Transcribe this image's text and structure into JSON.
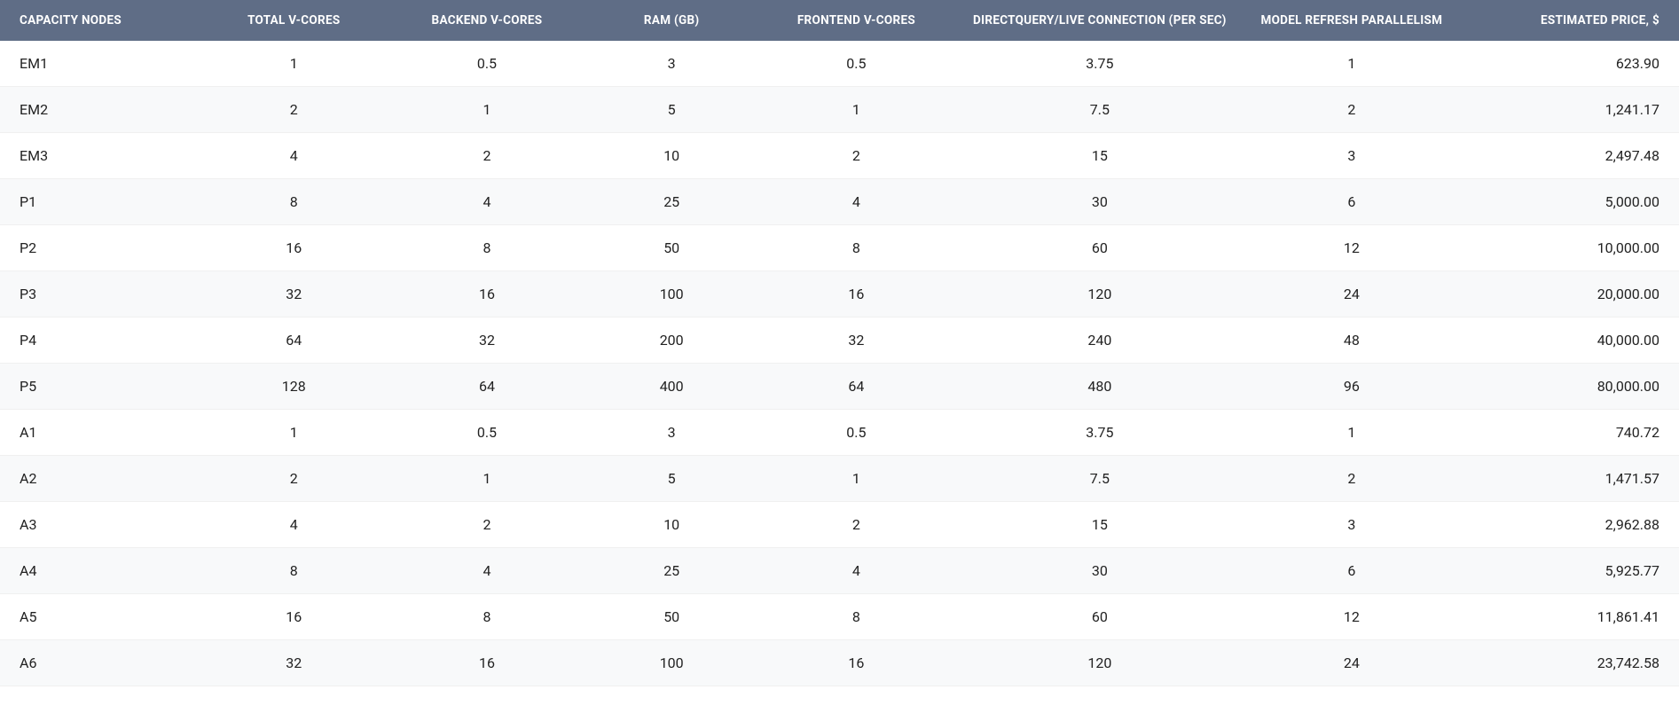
{
  "table": {
    "type": "table",
    "header_background_color": "#5f6d86",
    "header_text_color": "#ffffff",
    "row_even_background": "#f8f9fa",
    "row_odd_background": "#ffffff",
    "body_text_color": "#222222",
    "header_font_size": 13.5,
    "body_font_size": 16,
    "columns": [
      {
        "label": "CAPACITY NODES",
        "align": "left"
      },
      {
        "label": "TOTAL V-CORES",
        "align": "center"
      },
      {
        "label": "BACKEND V-CORES",
        "align": "center"
      },
      {
        "label": "RAM (GB)",
        "align": "center"
      },
      {
        "label": "FRONTEND V-CORES",
        "align": "center"
      },
      {
        "label": "DIRECTQUERY/LIVE CONNECTION (PER SEC)",
        "align": "center"
      },
      {
        "label": "MODEL REFRESH PARALLELISM",
        "align": "center"
      },
      {
        "label": "ESTIMATED PRICE, $",
        "align": "right"
      }
    ],
    "column_widths_pct": [
      12,
      11,
      12,
      10,
      12,
      17,
      13,
      13
    ],
    "rows": [
      [
        "EM1",
        "1",
        "0.5",
        "3",
        "0.5",
        "3.75",
        "1",
        "623.90"
      ],
      [
        "EM2",
        "2",
        "1",
        "5",
        "1",
        "7.5",
        "2",
        "1,241.17"
      ],
      [
        "EM3",
        "4",
        "2",
        "10",
        "2",
        "15",
        "3",
        "2,497.48"
      ],
      [
        "P1",
        "8",
        "4",
        "25",
        "4",
        "30",
        "6",
        "5,000.00"
      ],
      [
        "P2",
        "16",
        "8",
        "50",
        "8",
        "60",
        "12",
        "10,000.00"
      ],
      [
        "P3",
        "32",
        "16",
        "100",
        "16",
        "120",
        "24",
        "20,000.00"
      ],
      [
        "P4",
        "64",
        "32",
        "200",
        "32",
        "240",
        "48",
        "40,000.00"
      ],
      [
        "P5",
        "128",
        "64",
        "400",
        "64",
        "480",
        "96",
        "80,000.00"
      ],
      [
        "A1",
        "1",
        "0.5",
        "3",
        "0.5",
        "3.75",
        "1",
        "740.72"
      ],
      [
        "A2",
        "2",
        "1",
        "5",
        "1",
        "7.5",
        "2",
        "1,471.57"
      ],
      [
        "A3",
        "4",
        "2",
        "10",
        "2",
        "15",
        "3",
        "2,962.88"
      ],
      [
        "A4",
        "8",
        "4",
        "25",
        "4",
        "30",
        "6",
        "5,925.77"
      ],
      [
        "A5",
        "16",
        "8",
        "50",
        "8",
        "60",
        "12",
        "11,861.41"
      ],
      [
        "A6",
        "32",
        "16",
        "100",
        "16",
        "120",
        "24",
        "23,742.58"
      ]
    ]
  }
}
